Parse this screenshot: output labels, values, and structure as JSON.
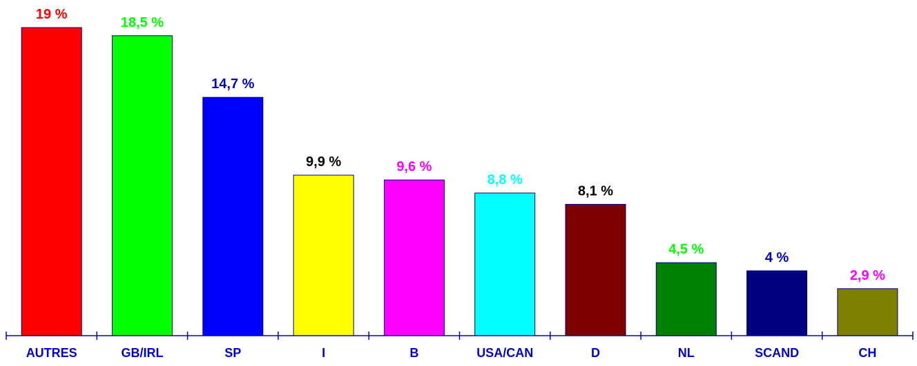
{
  "chart_data": {
    "type": "bar",
    "title": "",
    "xlabel": "",
    "ylabel": "",
    "ylim": [
      0,
      19
    ],
    "grid": false,
    "legend": "none",
    "categories": [
      "AUTRES",
      "GB/IRL",
      "SP",
      "I",
      "B",
      "USA/CAN",
      "D",
      "NL",
      "SCAND",
      "CH"
    ],
    "values": [
      19,
      18.5,
      14.7,
      9.9,
      9.6,
      8.8,
      8.1,
      4.5,
      4,
      2.9
    ],
    "data_labels": [
      "19 %",
      "18,5  %",
      "14,7 %",
      "9,9 %",
      "9,6 %",
      "8,8 %",
      "8,1 %",
      "4,5  %",
      "4  %",
      "2,9 %"
    ],
    "bar_colors": [
      "#ff0000",
      "#00ff00",
      "#0000ff",
      "#ffff00",
      "#ff00ff",
      "#00ffff",
      "#800000",
      "#008000",
      "#000080",
      "#808000"
    ],
    "label_colors": [
      "#ff0000",
      "#00ff00",
      "#0000cc",
      "#000000",
      "#ff00ff",
      "#00ffff",
      "#000000",
      "#00ff00",
      "#0000cc",
      "#ff00ff"
    ],
    "axis_label_color": "#0000cc",
    "axis_color": "#0000cc"
  }
}
